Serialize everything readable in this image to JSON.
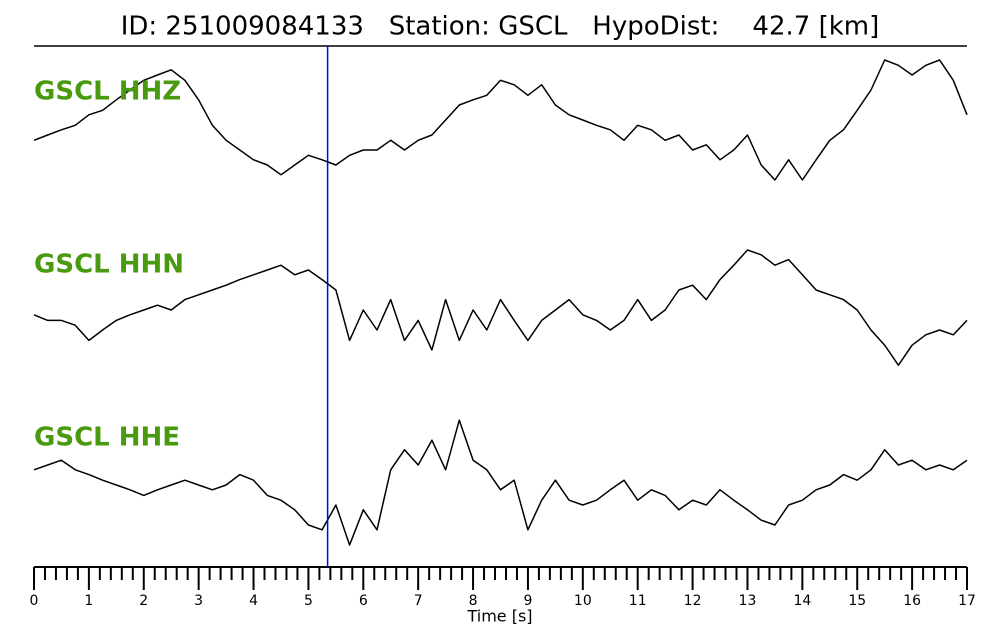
{
  "chart_data": {
    "type": "line",
    "title": "ID: 251009084133   Station: GSCL   HypoDist:    42.7 [km]",
    "x_label": "Time [s]",
    "xlim": [
      0,
      17
    ],
    "xticks": [
      0,
      1,
      2,
      3,
      4,
      5,
      6,
      7,
      8,
      9,
      10,
      11,
      12,
      13,
      14,
      15,
      16,
      17
    ],
    "xminorticks": [
      0.2,
      0.4,
      0.6,
      0.8,
      1.2,
      1.4,
      1.6,
      1.8,
      2.2,
      2.4,
      2.6,
      2.8,
      3.2,
      3.4,
      3.6,
      3.8,
      4.2,
      4.4,
      4.6,
      4.8,
      5.2,
      5.4,
      5.6,
      5.8,
      6.2,
      6.4,
      6.6,
      6.8,
      7.2,
      7.4,
      7.6,
      7.8,
      8.2,
      8.4,
      8.6,
      8.8,
      9.2,
      9.4,
      9.6,
      9.8,
      10.2,
      10.4,
      10.6,
      10.8,
      11.2,
      11.4,
      11.6,
      11.8,
      12.2,
      12.4,
      12.6,
      12.8,
      13.2,
      13.4,
      13.6,
      13.8,
      14.2,
      14.4,
      14.6,
      14.8,
      15.2,
      15.4,
      15.6,
      15.8,
      16.2,
      16.4,
      16.6,
      16.8
    ],
    "ylim": [
      -1,
      1
    ],
    "pick": {
      "x": 5.35,
      "color": "#0000ff"
    },
    "label_color": "#4a9a10",
    "x": [
      0,
      0.25,
      0.5,
      0.75,
      1,
      1.25,
      1.5,
      1.75,
      2,
      2.25,
      2.5,
      2.75,
      3,
      3.25,
      3.5,
      3.75,
      4,
      4.25,
      4.5,
      4.75,
      5,
      5.25,
      5.5,
      5.75,
      6,
      6.25,
      6.5,
      6.75,
      7,
      7.25,
      7.5,
      7.75,
      8,
      8.25,
      8.5,
      8.75,
      9,
      9.25,
      9.5,
      9.75,
      10,
      10.25,
      10.5,
      10.75,
      11,
      11.25,
      11.5,
      11.75,
      12,
      12.25,
      12.5,
      12.75,
      13,
      13.25,
      13.5,
      13.75,
      14,
      14.25,
      14.5,
      14.75,
      15,
      15.25,
      15.5,
      15.75,
      16,
      16.25,
      16.5,
      16.75,
      17
    ],
    "series": [
      {
        "name": "GSCL HHZ",
        "color": "#000000",
        "values": [
          -0.27,
          -0.2,
          -0.13,
          -0.07,
          0.07,
          0.13,
          0.27,
          0.4,
          0.53,
          0.6,
          0.67,
          0.53,
          0.27,
          -0.07,
          -0.27,
          -0.4,
          -0.53,
          -0.6,
          -0.73,
          -0.6,
          -0.47,
          -0.53,
          -0.6,
          -0.47,
          -0.4,
          -0.4,
          -0.27,
          -0.4,
          -0.27,
          -0.2,
          0,
          0.2,
          0.27,
          0.33,
          0.53,
          0.47,
          0.33,
          0.47,
          0.2,
          0.07,
          0,
          -0.07,
          -0.13,
          -0.27,
          -0.07,
          -0.13,
          -0.27,
          -0.2,
          -0.4,
          -0.33,
          -0.53,
          -0.4,
          -0.2,
          -0.6,
          -0.8,
          -0.53,
          -0.8,
          -0.53,
          -0.27,
          -0.13,
          0.13,
          0.4,
          0.8,
          0.73,
          0.6,
          0.73,
          0.8,
          0.53,
          0.07
        ]
      },
      {
        "name": "GSCL HHN",
        "color": "#000000",
        "values": [
          -0.06,
          -0.13,
          -0.13,
          -0.19,
          -0.38,
          -0.25,
          -0.13,
          -0.06,
          0,
          0.06,
          0,
          0.13,
          0.19,
          0.25,
          0.31,
          0.38,
          0.44,
          0.5,
          0.56,
          0.44,
          0.5,
          0.38,
          0.25,
          -0.38,
          0,
          -0.25,
          0.13,
          -0.38,
          -0.13,
          -0.5,
          0.13,
          -0.38,
          0,
          -0.25,
          0.13,
          -0.13,
          -0.38,
          -0.13,
          0,
          0.13,
          -0.06,
          -0.13,
          -0.25,
          -0.13,
          0.13,
          -0.13,
          0,
          0.25,
          0.31,
          0.13,
          0.38,
          0.56,
          0.75,
          0.69,
          0.56,
          0.63,
          0.44,
          0.25,
          0.19,
          0.13,
          0,
          -0.25,
          -0.44,
          -0.69,
          -0.44,
          -0.31,
          -0.25,
          -0.31,
          -0.13
        ]
      },
      {
        "name": "GSCL HHE",
        "color": "#000000",
        "values": [
          0.19,
          0.25,
          0.31,
          0.19,
          0.13,
          0.06,
          0,
          -0.06,
          -0.13,
          -0.06,
          0,
          0.06,
          0,
          -0.06,
          0,
          0.13,
          0.06,
          -0.13,
          -0.19,
          -0.31,
          -0.5,
          -0.56,
          -0.25,
          -0.75,
          -0.31,
          -0.56,
          0.19,
          0.44,
          0.25,
          0.56,
          0.19,
          0.81,
          0.31,
          0.19,
          -0.06,
          0.06,
          -0.56,
          -0.19,
          0.06,
          -0.19,
          -0.25,
          -0.19,
          -0.06,
          0.06,
          -0.19,
          -0.06,
          -0.13,
          -0.31,
          -0.19,
          -0.25,
          -0.06,
          -0.19,
          -0.31,
          -0.44,
          -0.5,
          -0.25,
          -0.19,
          -0.06,
          0,
          0.13,
          0.06,
          0.19,
          0.44,
          0.25,
          0.31,
          0.19,
          0.25,
          0.19,
          0.31
        ]
      }
    ]
  }
}
